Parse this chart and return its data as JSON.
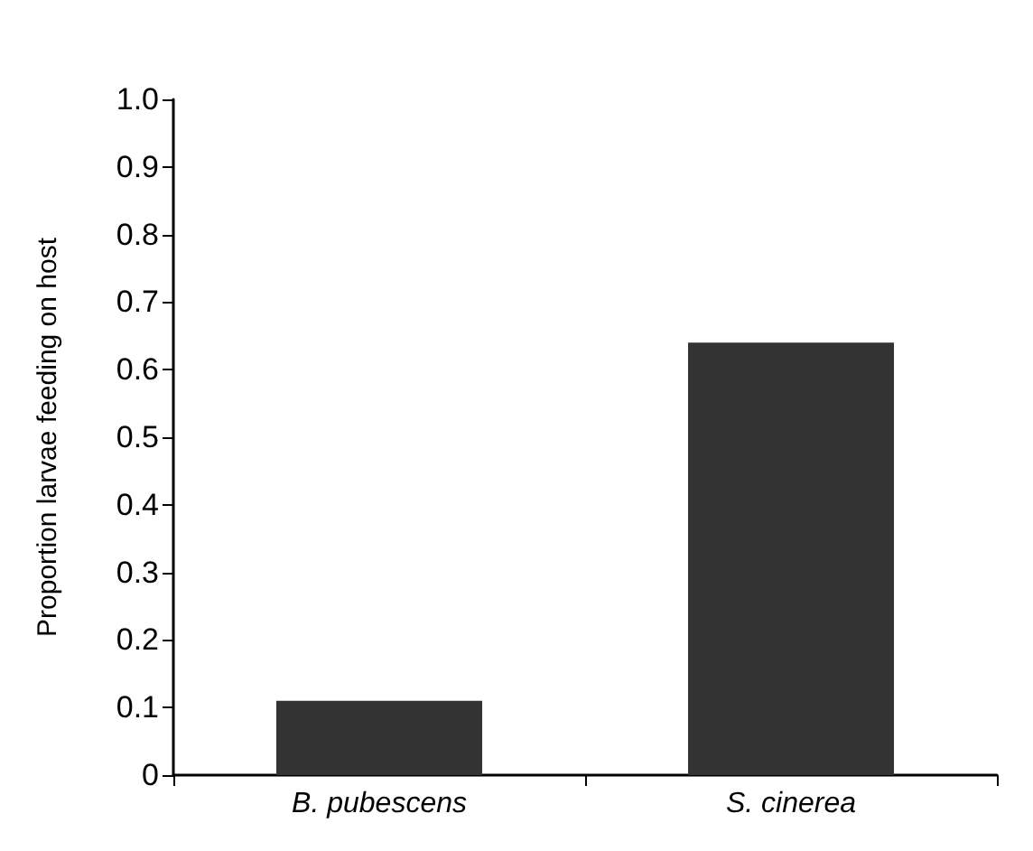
{
  "chart_data": {
    "type": "bar",
    "ylabel": "Proportion larvae feeding on host",
    "categories": [
      "B. pubescens",
      "S. cinerea"
    ],
    "values": [
      0.11,
      0.64
    ],
    "color": "#333333",
    "ylim": [
      0,
      1
    ],
    "yticks": [
      0,
      0.1,
      0.2,
      0.3,
      0.4,
      0.5,
      0.6,
      0.7,
      0.8,
      0.9,
      {
        "value": 1,
        "label": "1.0"
      }
    ],
    "grid": false
  }
}
